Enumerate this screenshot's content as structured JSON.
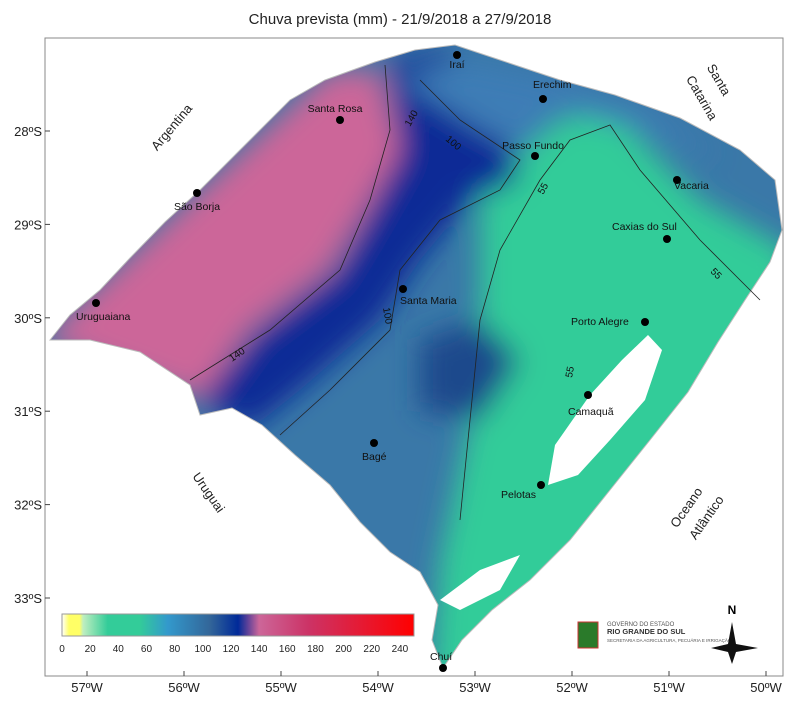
{
  "title": "Chuva prevista (mm) - 21/9/2018 a 27/9/2018",
  "lat_ticks": [
    "28ºS",
    "29ºS",
    "30ºS",
    "31ºS",
    "32ºS",
    "33ºS"
  ],
  "lon_ticks": [
    "57ºW",
    "56ºW",
    "55ºW",
    "54ºW",
    "53ºW",
    "52ºW",
    "51ºW",
    "50ºW"
  ],
  "regions": {
    "argentina": "Argentina",
    "santa": "Santa",
    "catarina": "Catarina",
    "uruguai": "Uruguai",
    "oceano": "Oceano",
    "atlantico": "Atlântico"
  },
  "cities": [
    "Iraí",
    "Erechim",
    "Santa Rosa",
    "Passo Fundo",
    "Vacaria",
    "São Borja",
    "Caxias do Sul",
    "Santa Maria",
    "Uruguaiana",
    "Porto Alegre",
    "Camaquã",
    "Bagé",
    "Pelotas",
    "Chuí"
  ],
  "contours": [
    "140",
    "100",
    "55",
    "55",
    "55",
    "100",
    "140"
  ],
  "legend": {
    "ticks": [
      "0",
      "20",
      "40",
      "60",
      "80",
      "100",
      "120",
      "140",
      "160",
      "180",
      "200",
      "220",
      "240"
    ],
    "unit": "mm",
    "colors": [
      "#ffff66",
      "#bfeec0",
      "#33cc99",
      "#3399cc",
      "#336699",
      "#002a99",
      "#cc6699",
      "#cc3366",
      "#ff0000"
    ]
  },
  "logo": {
    "line1": "GOVERNO DO ESTADO",
    "line2": "RIO GRANDE DO SUL",
    "line3": "SECRETARIA DA AGRICULTURA, PECUÁRIA E IRRIGAÇÃO"
  },
  "north": "N"
}
